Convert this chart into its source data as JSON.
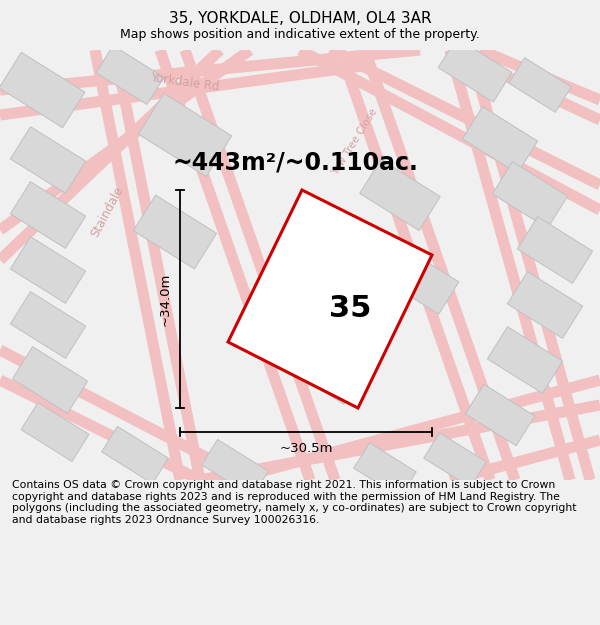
{
  "title": "35, YORKDALE, OLDHAM, OL4 3AR",
  "subtitle": "Map shows position and indicative extent of the property.",
  "area_text": "~443m²/~0.110ac.",
  "dim_width": "~30.5m",
  "dim_height": "~34.0m",
  "plot_number": "35",
  "footer": "Contains OS data © Crown copyright and database right 2021. This information is subject to Crown copyright and database rights 2023 and is reproduced with the permission of HM Land Registry. The polygons (including the associated geometry, namely x, y co-ordinates) are subject to Crown copyright and database rights 2023 Ordnance Survey 100026316.",
  "bg_color": "#f0f0f0",
  "map_bg": "#f5f5f3",
  "building_color": "#d8d8d8",
  "building_edge": "#c0c0c0",
  "road_color": "#f2c0c0",
  "plot_color": "#ffffff",
  "plot_edge": "#cc0000",
  "street_label_color": "#d4a0a0",
  "title_color": "#000000",
  "footer_color": "#000000",
  "title_fontsize": 11,
  "subtitle_fontsize": 9,
  "area_fontsize": 17,
  "plot_num_fontsize": 22,
  "dim_fontsize": 9.5,
  "street_fontsize": 8.5
}
